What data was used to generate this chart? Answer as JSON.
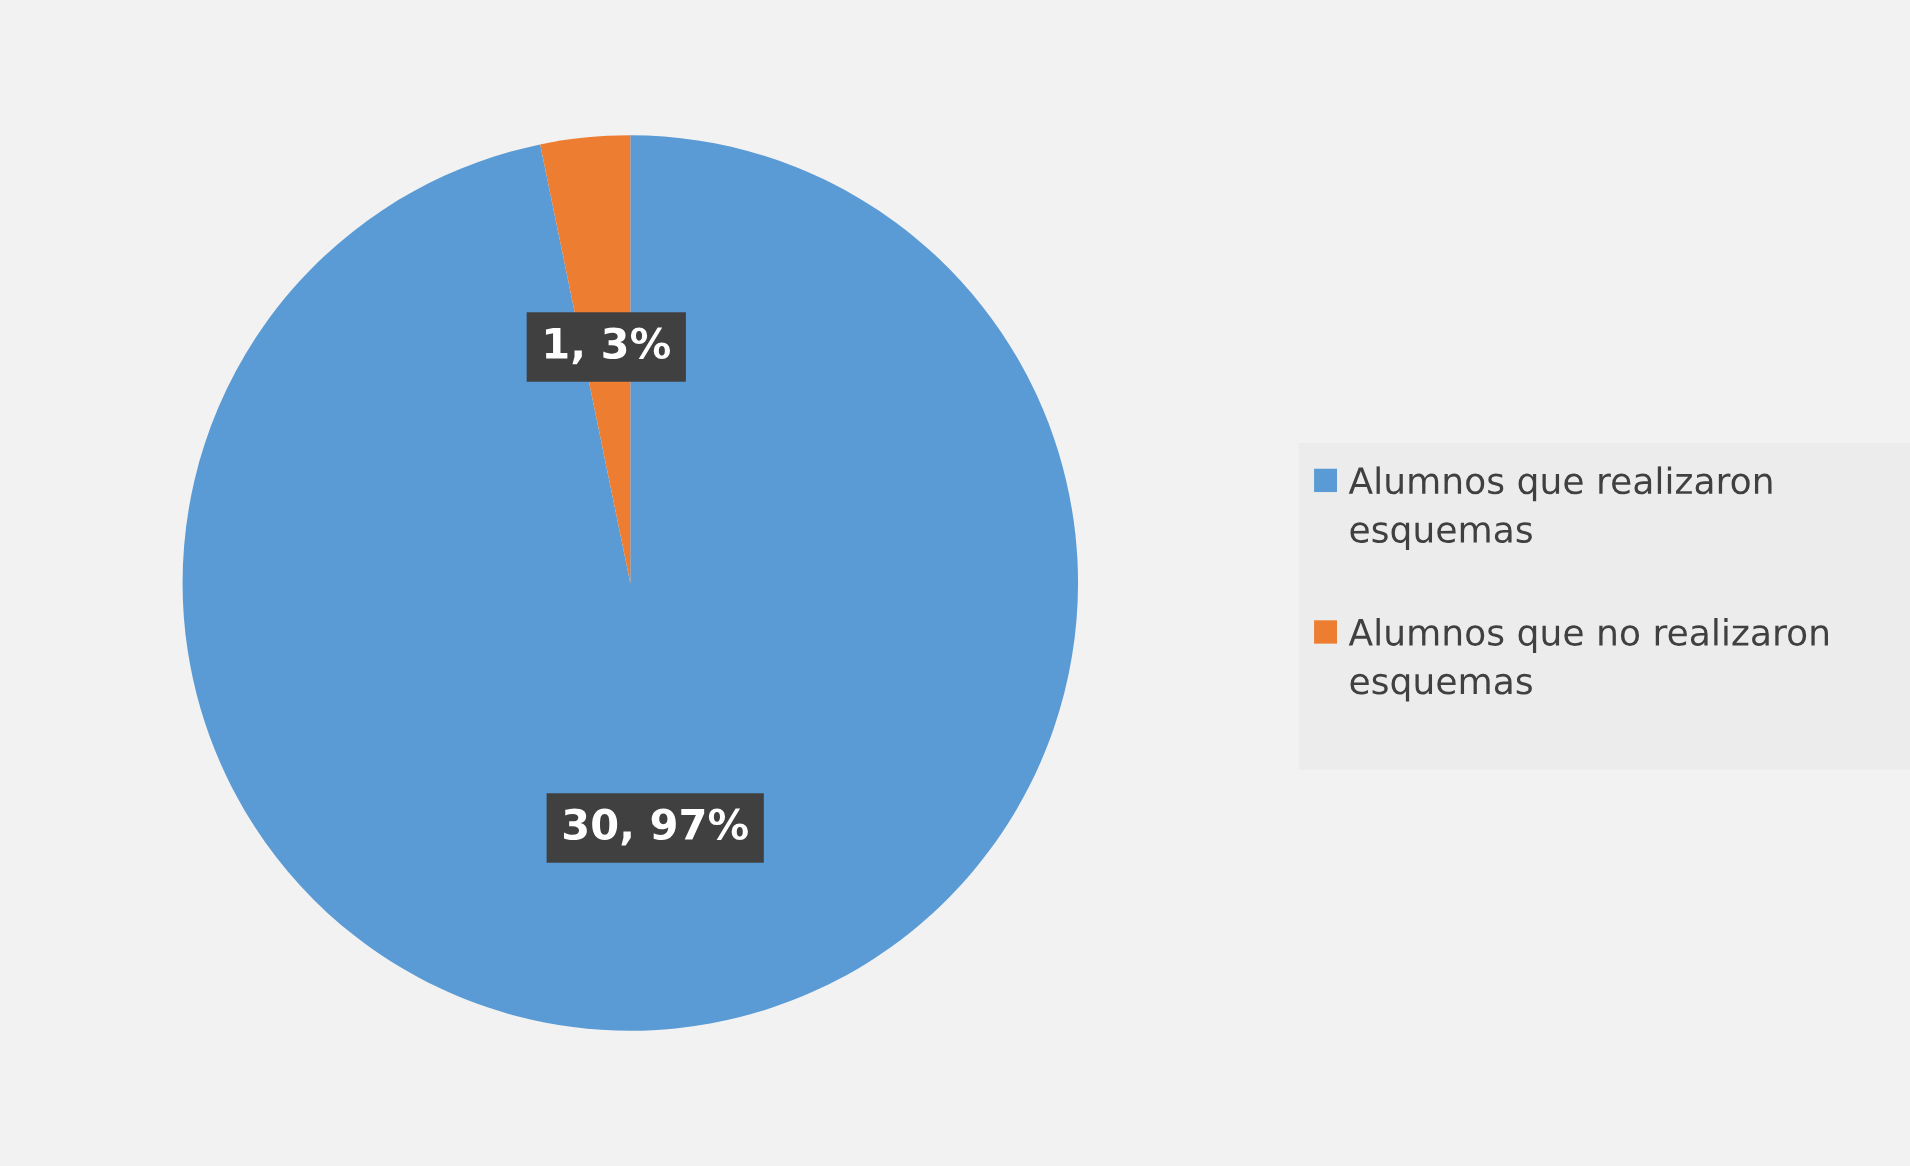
{
  "chart_data": {
    "type": "pie",
    "categories": [
      "Alumnos que realizaron esquemas",
      "Alumnos que no realizaron esquemas"
    ],
    "values": [
      30,
      1
    ],
    "colors": [
      "#5b9bd5",
      "#ed7d31"
    ],
    "value_labels": [
      "30, 97%",
      "1, 3%"
    ],
    "legend": "right"
  }
}
